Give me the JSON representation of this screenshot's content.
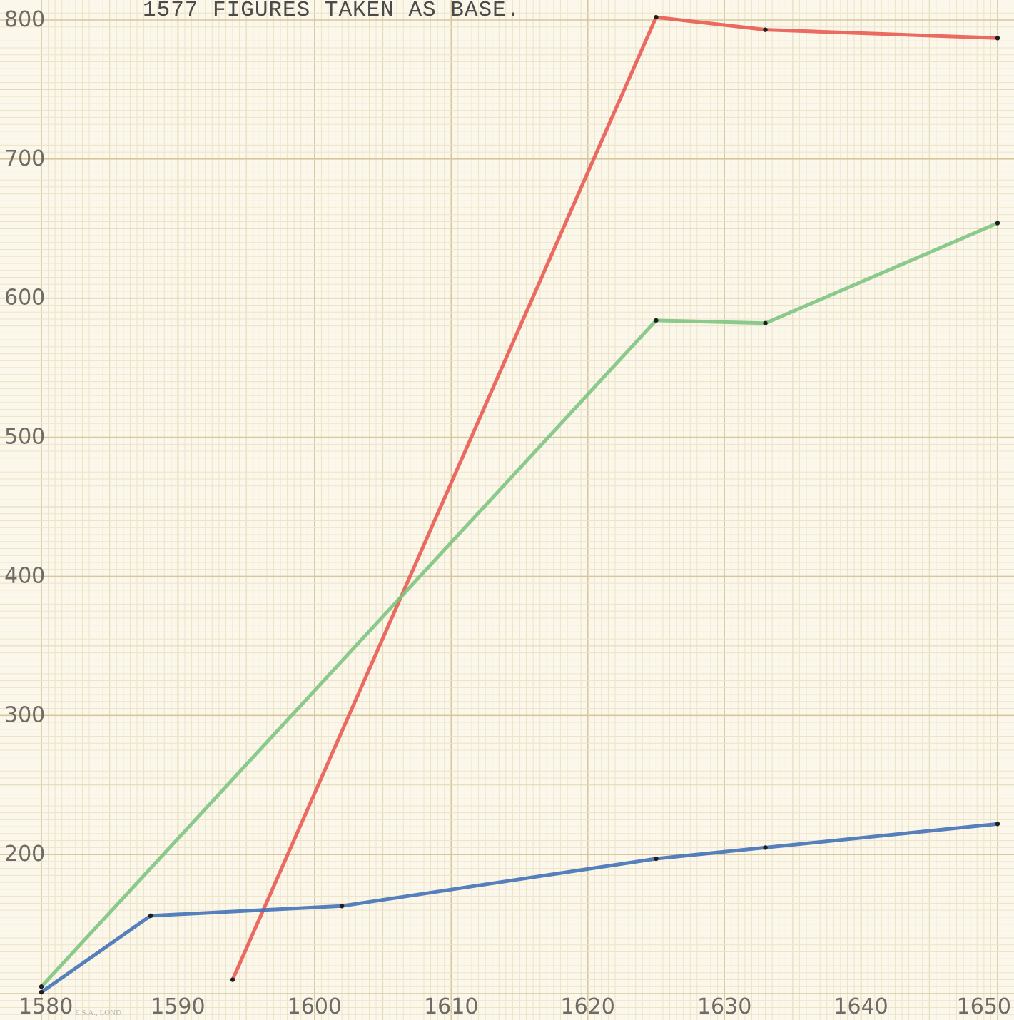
{
  "chart_data": {
    "type": "line",
    "title": "1577 FIGURES TAKEN AS BASE.",
    "xlabel": "",
    "ylabel": "",
    "xlim": [
      1580,
      1650
    ],
    "ylim": [
      100,
      800
    ],
    "x_ticks": [
      "1580",
      "1590",
      "1600",
      "1610",
      "1620",
      "1630",
      "1640",
      "1650"
    ],
    "y_ticks": [
      "200",
      "300",
      "400",
      "500",
      "600",
      "700",
      "800"
    ],
    "grid": true,
    "imprint": "E.S.A., LOND",
    "series": [
      {
        "color": "#e8564f",
        "x": [
          1594,
          1625,
          1633,
          1650
        ],
        "y": [
          110,
          802,
          793,
          787
        ]
      },
      {
        "color": "#7bc47f",
        "x": [
          1580,
          1625,
          1633,
          1650
        ],
        "y": [
          105,
          584,
          582,
          654
        ]
      },
      {
        "color": "#3d6fb6",
        "x": [
          1580,
          1588,
          1602,
          1625,
          1633,
          1650
        ],
        "y": [
          101,
          156,
          163,
          197,
          205,
          222
        ]
      }
    ]
  }
}
